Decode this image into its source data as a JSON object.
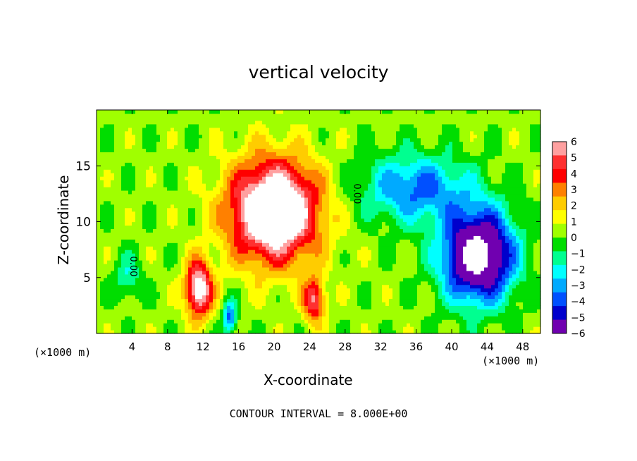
{
  "chart_data": {
    "type": "heatmap",
    "title": "vertical velocity",
    "xlabel": "X-coordinate",
    "ylabel": "Z-coordinate",
    "x_unit_left": "(×1000 m)",
    "x_unit_right": "(×1000 m)",
    "footer": "CONTOUR INTERVAL = 8.000E+00",
    "xlim": [
      0,
      50
    ],
    "ylim": [
      0,
      20
    ],
    "xticks": [
      4,
      8,
      12,
      16,
      20,
      24,
      28,
      32,
      36,
      40,
      44,
      48
    ],
    "yticks": [
      5,
      10,
      15
    ],
    "colorbar": {
      "levels": [
        6,
        5,
        4,
        3,
        2,
        1,
        0,
        -1,
        -2,
        -3,
        -4,
        -5,
        -6
      ],
      "range": [
        -6,
        6
      ],
      "colors": [
        "#ffa0a0",
        "#ff3030",
        "#ff0000",
        "#ff8000",
        "#ffcc00",
        "#ffff00",
        "#a0ff00",
        "#00dd00",
        "#00ff90",
        "#00ffff",
        "#00aaff",
        "#0050ff",
        "#0000cc",
        "#7000b0"
      ]
    },
    "contour_labels": [
      "0.00",
      "0.00"
    ],
    "features": [
      {
        "kind": "updraft",
        "x": 20,
        "z": 11,
        "sx": 5,
        "sz": 4.5,
        "w": 9
      },
      {
        "kind": "updraft",
        "x": 11.5,
        "z": 4,
        "sx": 1.5,
        "sz": 2.5,
        "w": 7
      },
      {
        "kind": "updraft",
        "x": 24.5,
        "z": 3,
        "sx": 1.2,
        "sz": 2,
        "w": 5
      },
      {
        "kind": "downdraft",
        "x": 43,
        "z": 7,
        "sx": 4,
        "sz": 4,
        "w": -9
      },
      {
        "kind": "downdraft",
        "x": 36,
        "z": 13,
        "sx": 6,
        "sz": 3,
        "w": -4
      },
      {
        "kind": "downdraft",
        "x": 15,
        "z": 1.5,
        "sx": 0.8,
        "sz": 1.5,
        "w": -4
      },
      {
        "kind": "downdraft",
        "x": 3.5,
        "z": 5,
        "sx": 1.5,
        "sz": 2,
        "w": -2
      }
    ]
  }
}
